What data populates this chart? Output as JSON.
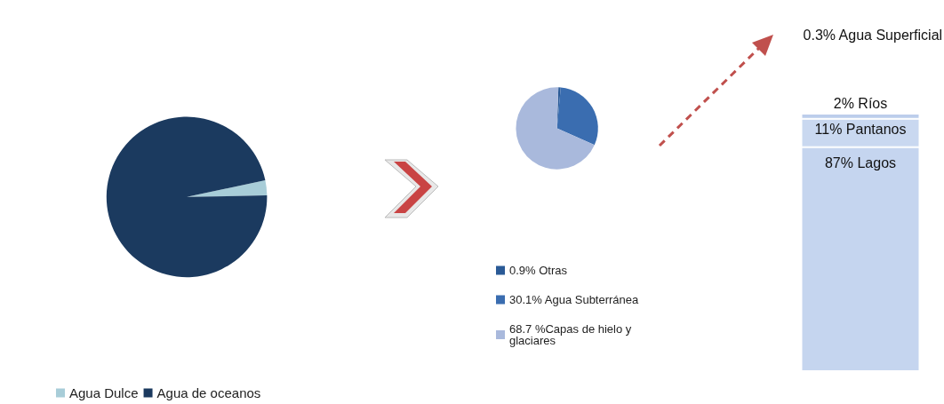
{
  "chart_data": [
    {
      "type": "pie",
      "categories": [
        "Agua Dulce",
        "Agua de oceanos"
      ],
      "values": [
        3,
        97
      ],
      "colors": [
        "#a8cdd8",
        "#1b3a5f"
      ],
      "legend": "bottom"
    },
    {
      "type": "pie",
      "categories": [
        "0.9% Otras",
        "30.1% Agua Subterránea",
        "68.7 %Capas de hielo y glaciares"
      ],
      "values": [
        0.9,
        30.1,
        68.7
      ],
      "colors": [
        "#2a5a96",
        "#3a6db0",
        "#a9b9dc"
      ],
      "legend": "bottom"
    },
    {
      "type": "bar",
      "title": "0.3% Agua Superficial",
      "stacked": true,
      "categories": [
        null
      ],
      "tick_labels": false,
      "series": [
        {
          "values": [
            87
          ],
          "color": "#c5d5ef",
          "value_labels": [
            "87% Lagos"
          ]
        },
        {
          "values": [
            11
          ],
          "color": "#c9d8f0",
          "value_labels": [
            "11% Pantanos"
          ]
        },
        {
          "values": [
            2
          ],
          "color": "#bccdeb",
          "value_labels": [
            "2% Ríos"
          ]
        }
      ]
    }
  ]
}
